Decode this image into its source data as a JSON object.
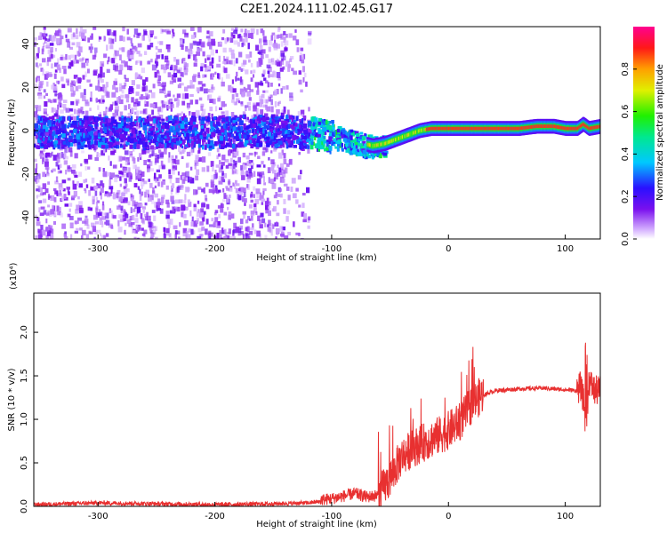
{
  "figure": {
    "title": "C2E1.2024.111.02.45.G17"
  },
  "chart_data": [
    {
      "type": "heatmap",
      "xlabel": "Height of straight line (km)",
      "ylabel": "Frequency (Hz)",
      "xlim": [
        -355,
        130
      ],
      "ylim": [
        -50,
        48
      ],
      "xticks": [
        -300,
        -200,
        -100,
        0,
        100
      ],
      "xtick_labels": [
        "-300",
        "-200",
        "-100",
        "0",
        "100"
      ],
      "yticks": [
        -40,
        -20,
        0,
        20,
        40
      ],
      "ytick_labels": [
        "-40",
        "-20",
        "0",
        "20",
        "40"
      ],
      "colorbar": {
        "label": "Normalized spectral amplitude",
        "range": [
          0,
          1
        ],
        "ticks": [
          0.0,
          0.2,
          0.4,
          0.6,
          0.8
        ],
        "tick_labels": [
          "0.0",
          "0.2",
          "0.4",
          "0.6",
          "0.8"
        ],
        "colormap": "rainbow (white-purple-blue-cyan-green-yellow-red-magenta)"
      },
      "ridge": {
        "description": "dominant frequency trace",
        "x": [
          -355,
          -300,
          -250,
          -200,
          -160,
          -120,
          -100,
          -80,
          -65,
          -55,
          -45,
          -35,
          -25,
          -15,
          0,
          30,
          60,
          75,
          90,
          100,
          110,
          115,
          120,
          130
        ],
        "y": [
          0,
          0,
          0,
          0,
          1,
          0,
          -2,
          -5,
          -7,
          -6,
          -4,
          -2,
          0,
          1,
          1,
          1,
          1,
          2,
          2,
          1,
          1,
          3,
          1,
          2
        ]
      },
      "grid": false
    },
    {
      "type": "line",
      "xlabel": "Height of straight line (km)",
      "ylabel": "SNR (10 * v/v)",
      "y_multiplier": "(x10⁴)",
      "xlim": [
        -355,
        130
      ],
      "ylim": [
        0,
        2.45
      ],
      "xticks": [
        -300,
        -200,
        -100,
        0,
        100
      ],
      "xtick_labels": [
        "-300",
        "-200",
        "-100",
        "0",
        "100"
      ],
      "yticks": [
        0.0,
        0.5,
        1.0,
        1.5,
        2.0
      ],
      "ytick_labels": [
        "0.0",
        "0.5",
        "1.0",
        "1.5",
        "2.0"
      ],
      "color": "#e83030",
      "series": [
        {
          "x": [
            -355,
            -300,
            -250,
            -200,
            -150,
            -120,
            -100,
            -80,
            -70,
            -60,
            -50,
            -40,
            -30,
            -20,
            -10,
            0,
            10,
            20,
            30,
            40,
            60,
            80,
            100,
            110,
            113,
            116,
            118,
            120,
            125,
            130
          ],
          "y": [
            0.01,
            0.03,
            0.02,
            0.01,
            0.02,
            0.03,
            0.06,
            0.12,
            0.08,
            0.1,
            0.3,
            0.55,
            0.65,
            0.72,
            0.78,
            0.85,
            0.95,
            1.15,
            1.28,
            1.33,
            1.35,
            1.36,
            1.34,
            1.33,
            1.38,
            1.2,
            0.8,
            1.45,
            1.33,
            1.33
          ]
        }
      ],
      "grid": false
    }
  ]
}
